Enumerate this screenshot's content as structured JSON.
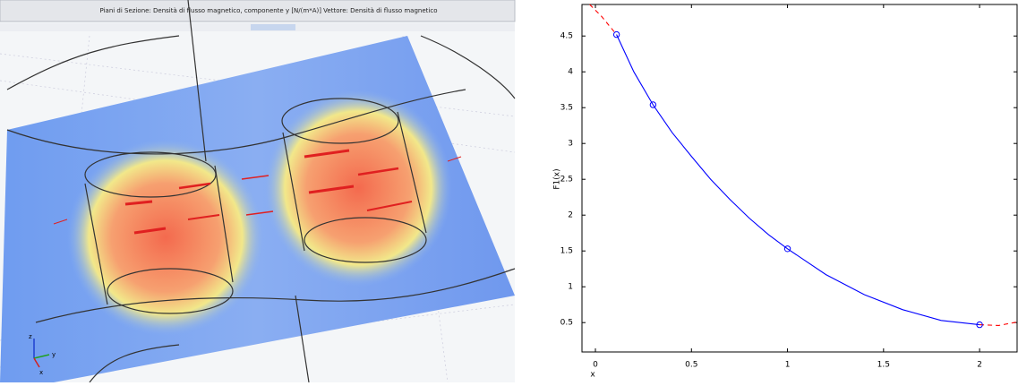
{
  "header": {
    "title": "Piani di Sezione: Densità di flusso magnetico, componente y [N/(m*A)]   Vettore: Densità di flusso magnetico"
  },
  "triad": {
    "labels": [
      "z",
      "y",
      "x"
    ]
  },
  "chart_data": {
    "type": "line",
    "xlabel": "x",
    "ylabel": "F1(x)",
    "xlim": [
      -0.07,
      2.2
    ],
    "ylim": [
      0.09,
      4.94
    ],
    "xticks": [
      0,
      0.5,
      1,
      1.5,
      2
    ],
    "yticks": [
      0.5,
      1,
      1.5,
      2,
      2.5,
      3,
      3.5,
      4,
      4.5
    ],
    "series": [
      {
        "color": "#0000ff",
        "style": "solid",
        "x": [
          0.11,
          0.2,
          0.3,
          0.4,
          0.5,
          0.6,
          0.7,
          0.8,
          0.9,
          1.0,
          1.2,
          1.4,
          1.6,
          1.8,
          2.0
        ],
        "values": [
          4.52,
          4.0,
          3.54,
          3.15,
          2.82,
          2.5,
          2.22,
          1.96,
          1.73,
          1.53,
          1.17,
          0.89,
          0.68,
          0.53,
          0.47
        ]
      },
      {
        "color": "#ff0000",
        "style": "dashed",
        "x": [
          -0.03,
          0.03,
          0.11
        ],
        "values": [
          4.94,
          4.78,
          4.52
        ]
      },
      {
        "color": "#ff0000",
        "style": "dashed",
        "x": [
          2.0,
          2.1,
          2.2
        ],
        "values": [
          0.47,
          0.46,
          0.51
        ]
      },
      {
        "color": "#0000ff",
        "style": "markers",
        "x": [
          0.11,
          0.3,
          1.0,
          2.0
        ],
        "values": [
          4.52,
          3.54,
          1.53,
          0.47
        ]
      }
    ]
  }
}
